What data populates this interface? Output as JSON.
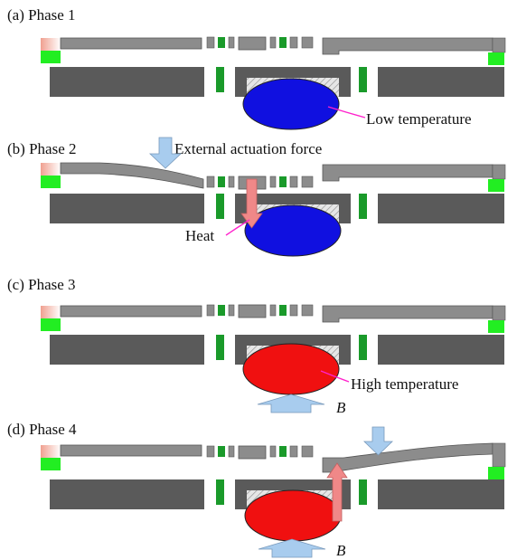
{
  "colors": {
    "beam": "#8c8c8c",
    "base": "#5a5a5a",
    "outline": "#444444",
    "green": "#1a9a2a",
    "bright_green": "#22ee22",
    "red_gradient": "#f0b8a8",
    "cold": "#1010e0",
    "hot": "#f01010",
    "arrow_blue": "#a8ccee",
    "arrow_pink": "#f08888",
    "leader": "#ff22cc",
    "hatch": "#999999"
  },
  "phases": [
    {
      "title": "(a) Phase 1",
      "ball_color": "cold",
      "callout": "Low temperature"
    },
    {
      "title": "(b) Phase 2",
      "ball_color": "cold",
      "force_label": "External actuation force",
      "heat_label": "Heat"
    },
    {
      "title": "(c) Phase 3",
      "ball_color": "hot",
      "callout": "High temperature",
      "field_label": "B"
    },
    {
      "title": "(d) Phase 4",
      "ball_color": "hot",
      "field_label": "B"
    }
  ]
}
